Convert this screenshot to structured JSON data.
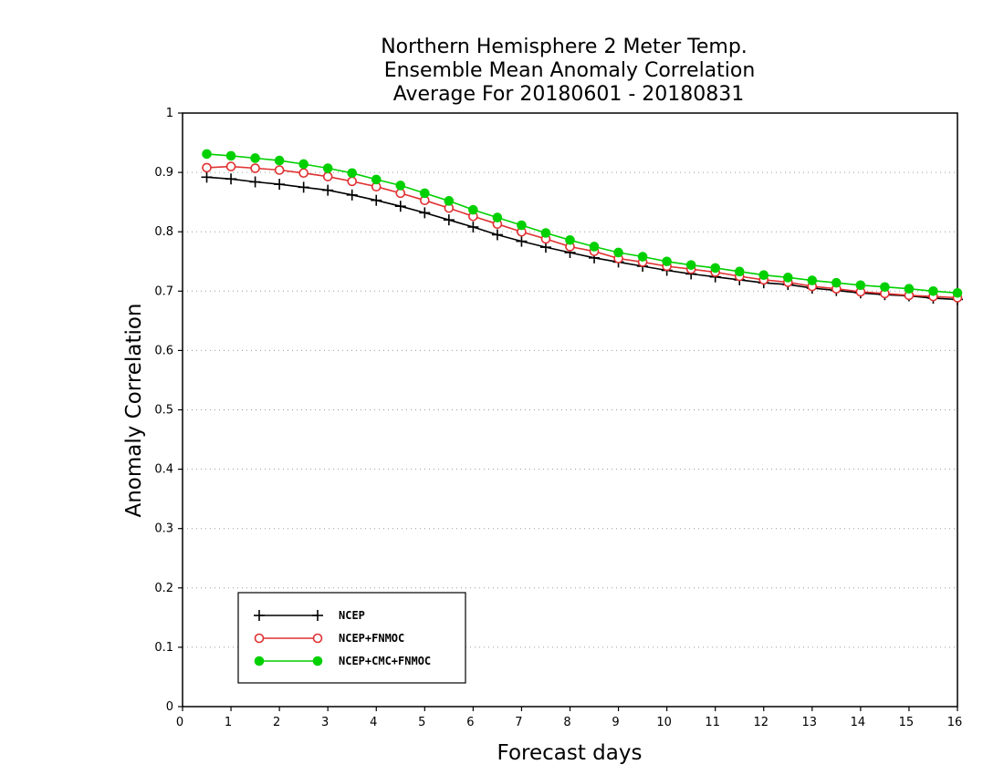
{
  "chart_data": {
    "type": "line",
    "title": [
      "Northern Hemisphere 2 Meter Temp.",
      "Ensemble Mean Anomaly Correlation",
      "Average For 20180601 - 20180831"
    ],
    "xlabel": "Forecast days",
    "ylabel": "Anomaly Correlation",
    "xlim": [
      0,
      16
    ],
    "ylim": [
      0,
      1
    ],
    "xticks": [
      "0",
      "1",
      "2",
      "3",
      "4",
      "5",
      "6",
      "7",
      "8",
      "9",
      "10",
      "11",
      "12",
      "13",
      "14",
      "15",
      "16"
    ],
    "yticks": [
      "0",
      "0.1",
      "0.2",
      "0.3",
      "0.4",
      "0.5",
      "0.6",
      "0.7",
      "0.8",
      "0.9",
      "1"
    ],
    "grid": true,
    "legend_position": "bottom-left",
    "x": [
      0.5,
      1,
      1.5,
      2,
      2.5,
      3,
      3.5,
      4,
      4.5,
      5,
      5.5,
      6,
      6.5,
      7,
      7.5,
      8,
      8.5,
      9,
      9.5,
      10,
      10.5,
      11,
      11.5,
      12,
      12.5,
      13,
      13.5,
      14,
      14.5,
      15,
      15.5,
      16
    ],
    "series": [
      {
        "name": "NCEP",
        "color": "#000000",
        "marker": "plus",
        "values": [
          0.892,
          0.889,
          0.884,
          0.88,
          0.875,
          0.87,
          0.862,
          0.853,
          0.843,
          0.832,
          0.82,
          0.808,
          0.795,
          0.784,
          0.774,
          0.765,
          0.756,
          0.749,
          0.742,
          0.735,
          0.729,
          0.724,
          0.719,
          0.714,
          0.711,
          0.705,
          0.701,
          0.697,
          0.694,
          0.692,
          0.688,
          0.686
        ]
      },
      {
        "name": "NCEP+FNMOC",
        "color": "#e03030",
        "marker": "open-circle",
        "values": [
          0.908,
          0.91,
          0.907,
          0.904,
          0.899,
          0.893,
          0.885,
          0.876,
          0.865,
          0.853,
          0.84,
          0.826,
          0.813,
          0.8,
          0.788,
          0.775,
          0.767,
          0.755,
          0.749,
          0.742,
          0.737,
          0.732,
          0.725,
          0.719,
          0.715,
          0.708,
          0.704,
          0.699,
          0.696,
          0.693,
          0.691,
          0.689
        ]
      },
      {
        "name": "NCEP+CMC+FNMOC",
        "color": "#00d000",
        "marker": "filled-circle",
        "values": [
          0.931,
          0.928,
          0.924,
          0.92,
          0.914,
          0.907,
          0.899,
          0.888,
          0.878,
          0.865,
          0.852,
          0.837,
          0.824,
          0.811,
          0.798,
          0.786,
          0.775,
          0.765,
          0.758,
          0.75,
          0.744,
          0.739,
          0.733,
          0.727,
          0.723,
          0.718,
          0.714,
          0.71,
          0.707,
          0.704,
          0.7,
          0.697
        ]
      }
    ]
  }
}
